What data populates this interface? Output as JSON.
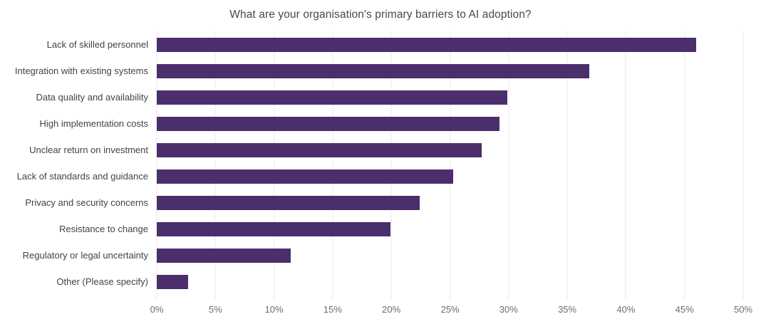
{
  "chart_data": {
    "type": "bar",
    "orientation": "horizontal",
    "title": "What are your organisation's primary barriers to AI adoption?",
    "categories": [
      "Lack of skilled personnel",
      "Integration with existing systems",
      "Data quality and availability",
      "High implementation costs",
      "Unclear return on investment",
      "Lack of standards and guidance",
      "Privacy and security concerns",
      "Resistance to change",
      "Regulatory or legal uncertainty",
      "Other (Please specify)"
    ],
    "values": [
      46.0,
      36.9,
      29.9,
      29.2,
      27.7,
      25.3,
      22.4,
      19.9,
      11.4,
      2.7
    ],
    "unit": "%",
    "xlabel": "",
    "ylabel": "",
    "xlim": [
      0,
      50
    ],
    "x_ticks": [
      "0%",
      "5%",
      "10%",
      "15%",
      "20%",
      "25%",
      "30%",
      "35%",
      "40%",
      "45%",
      "50%"
    ],
    "x_tick_values": [
      0,
      5,
      10,
      15,
      20,
      25,
      30,
      35,
      40,
      45,
      50
    ],
    "grid": "vertical-only",
    "legend": "none",
    "value_labels": "none",
    "colors": {
      "bar": "#4b2e6c",
      "title": "#414a52",
      "category_label": "#3f4347",
      "tick_label": "#676d73",
      "gridline": "#e9e8ee",
      "background": "#ffffff"
    }
  }
}
